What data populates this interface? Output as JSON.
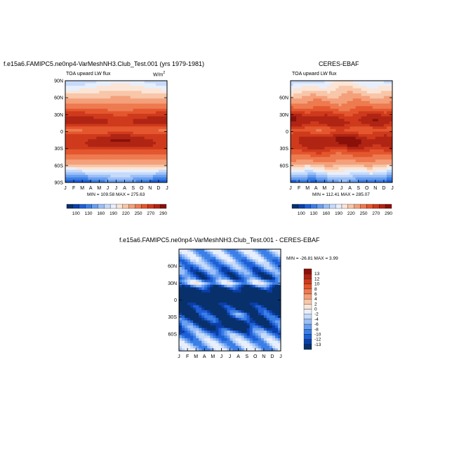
{
  "chart_data": [
    {
      "type": "heatmap",
      "id": "model",
      "title": "f.e15a6.FAMIPC5.ne0np4-VarMeshNH3.Club_Test.001 (yrs 1979-1981)",
      "left_label": "TOA upward LW flux",
      "right_label": "W/m",
      "right_label_sup": "2",
      "x_tick_labels": [
        "J",
        "F",
        "M",
        "A",
        "M",
        "J",
        "J",
        "A",
        "S",
        "O",
        "N",
        "D",
        "J"
      ],
      "y_tick_labels": [
        "90N",
        "60N",
        "30N",
        "0",
        "30S",
        "60S",
        "90S"
      ],
      "y_ticks_lat": [
        90,
        60,
        30,
        0,
        -30,
        -60,
        -90
      ],
      "ylim": [
        -90,
        90
      ],
      "stats": "MIN = 109.58 MAX = 275.63",
      "min": 109.58,
      "max": 275.63,
      "grid": false
    },
    {
      "type": "heatmap",
      "id": "obs",
      "title": "CERES-EBAF",
      "left_label": "TOA upward LW flux",
      "x_tick_labels": [
        "J",
        "F",
        "M",
        "A",
        "M",
        "J",
        "J",
        "A",
        "S",
        "O",
        "N",
        "D",
        "J"
      ],
      "y_tick_labels": [
        "60N",
        "30N",
        "0",
        "30S",
        "60S"
      ],
      "y_ticks_lat": [
        60,
        30,
        0,
        -30,
        -60
      ],
      "ylim": [
        -90,
        90
      ],
      "stats": "MIN = 112.41 MAX = 285.07",
      "min": 112.41,
      "max": 285.07,
      "grid": false
    },
    {
      "type": "heatmap",
      "id": "diff",
      "title": "f.e15a6.FAMIPC5.ne0np4-VarMeshNH3.Club_Test.001 - CERES-EBAF",
      "x_tick_labels": [
        "J",
        "F",
        "M",
        "A",
        "M",
        "J",
        "J",
        "A",
        "S",
        "O",
        "N",
        "D",
        "J"
      ],
      "y_tick_labels": [
        "60N",
        "30N",
        "0",
        "30S",
        "60S"
      ],
      "y_ticks_lat": [
        60,
        30,
        0,
        -30,
        -60
      ],
      "ylim": [
        -90,
        90
      ],
      "stats": "MIN = -26.81 MAX =  3.99",
      "min": -26.81,
      "max": 3.99,
      "grid": false
    }
  ],
  "colorbar_abs": {
    "labels": [
      "100",
      "130",
      "160",
      "190",
      "220",
      "250",
      "270",
      "290"
    ],
    "colors": [
      "#08306b",
      "#0b3fa8",
      "#1f5fd6",
      "#3b7fe6",
      "#6a9ff0",
      "#9bbff6",
      "#c6dafa",
      "#e8effc",
      "#fbe5d6",
      "#f8c6a8",
      "#f4a07a",
      "#ee7a50",
      "#e4572e",
      "#cf3a1c",
      "#b02414",
      "#8a1009"
    ]
  },
  "colorbar_diff": {
    "labels": [
      "13",
      "12",
      "10",
      "8",
      "6",
      "4",
      "2",
      "0",
      "-2",
      "-4",
      "-6",
      "-8",
      "-10",
      "-12",
      "-13"
    ],
    "colors": [
      "#8a1009",
      "#b02414",
      "#cf3a1c",
      "#e4572e",
      "#ee7a50",
      "#f4a07a",
      "#f8c6a8",
      "#fbe5d6",
      "#e8effc",
      "#c6dafa",
      "#9bbff6",
      "#6a9ff0",
      "#3b7fe6",
      "#1f5fd6",
      "#0b3fa8",
      "#08306b"
    ]
  }
}
